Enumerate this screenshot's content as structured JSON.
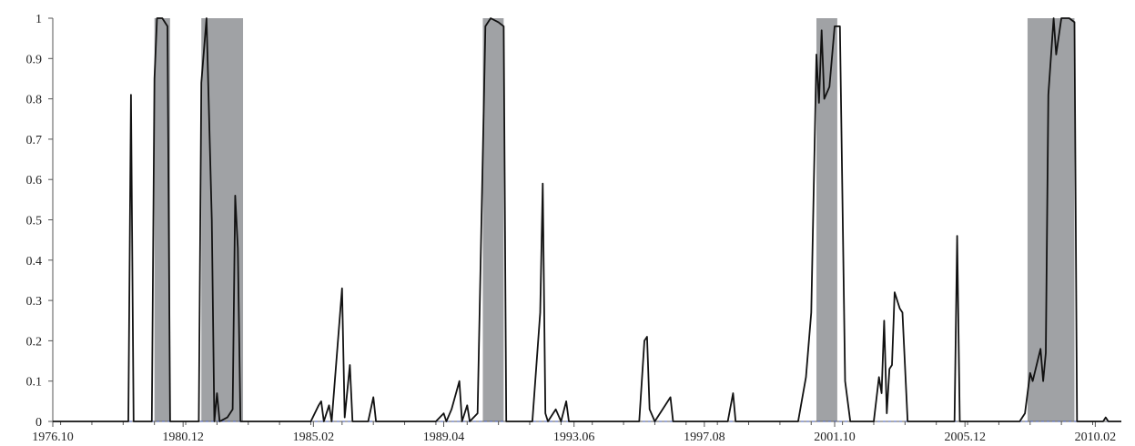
{
  "chart_data": {
    "type": "line",
    "title": "",
    "xlabel": "",
    "ylabel": "",
    "xlim": [
      "1976.10",
      "2010.12"
    ],
    "ylim": [
      0,
      1
    ],
    "yticks": [
      "0",
      "0.1",
      "0.2",
      "0.3",
      "0.4",
      "0.5",
      "0.6",
      "0.7",
      "0.8",
      "0.9",
      "1"
    ],
    "xticks": [
      "1976.10",
      "1980.12",
      "1985.02",
      "1989.04",
      "1993.06",
      "1997.08",
      "2001.10",
      "2005.12",
      "2010.02"
    ],
    "grid": false,
    "shaded_periods": [
      {
        "start": "1980.01",
        "end": "1980.07"
      },
      {
        "start": "1981.07",
        "end": "1982.11"
      },
      {
        "start": "1990.07",
        "end": "1991.03"
      },
      {
        "start": "2001.03",
        "end": "2001.11"
      },
      {
        "start": "2007.12",
        "end": "2009.06"
      }
    ],
    "colors": {
      "line": "#111111",
      "shade": "#a0a2a5",
      "baseline": "#3a4fa8"
    },
    "series": [
      {
        "values": [
          [
            "1976.10",
            0
          ],
          [
            "1979.03",
            0
          ],
          [
            "1979.04",
            0.81
          ],
          [
            "1979.05",
            0
          ],
          [
            "1979.12",
            0
          ],
          [
            "1980.01",
            0.85
          ],
          [
            "1980.02",
            1
          ],
          [
            "1980.04",
            1
          ],
          [
            "1980.06",
            0.98
          ],
          [
            "1980.07",
            0
          ],
          [
            "1981.06",
            0
          ],
          [
            "1981.07",
            0.84
          ],
          [
            "1981.09",
            1
          ],
          [
            "1981.11",
            0.5
          ],
          [
            "1981.12",
            0
          ],
          [
            "1982.01",
            0.07
          ],
          [
            "1982.02",
            0
          ],
          [
            "1982.05",
            0.01
          ],
          [
            "1982.07",
            0.03
          ],
          [
            "1982.08",
            0.56
          ],
          [
            "1982.09",
            0.43
          ],
          [
            "1982.10",
            0
          ],
          [
            "1985.01",
            0
          ],
          [
            "1985.04",
            0.04
          ],
          [
            "1985.05",
            0.05
          ],
          [
            "1985.06",
            0
          ],
          [
            "1985.08",
            0.04
          ],
          [
            "1985.09",
            0
          ],
          [
            "1986.01",
            0.33
          ],
          [
            "1986.02",
            0.01
          ],
          [
            "1986.04",
            0.14
          ],
          [
            "1986.05",
            0
          ],
          [
            "1986.11",
            0
          ],
          [
            "1987.01",
            0.06
          ],
          [
            "1987.02",
            0
          ],
          [
            "1989.01",
            0
          ],
          [
            "1989.04",
            0.02
          ],
          [
            "1989.05",
            0
          ],
          [
            "1989.07",
            0.03
          ],
          [
            "1989.10",
            0.1
          ],
          [
            "1989.11",
            0
          ],
          [
            "1990.01",
            0.04
          ],
          [
            "1990.02",
            0
          ],
          [
            "1990.05",
            0.02
          ],
          [
            "1990.08",
            0.98
          ],
          [
            "1990.10",
            1
          ],
          [
            "1991.01",
            0.99
          ],
          [
            "1991.03",
            0.98
          ],
          [
            "1991.04",
            0
          ],
          [
            "1992.02",
            0
          ],
          [
            "1992.05",
            0.27
          ],
          [
            "1992.06",
            0.59
          ],
          [
            "1992.07",
            0.02
          ],
          [
            "1992.08",
            0
          ],
          [
            "1992.11",
            0.03
          ],
          [
            "1993.01",
            0
          ],
          [
            "1993.03",
            0.05
          ],
          [
            "1993.04",
            0
          ],
          [
            "1995.07",
            0
          ],
          [
            "1995.09",
            0.2
          ],
          [
            "1995.10",
            0.21
          ],
          [
            "1995.11",
            0.03
          ],
          [
            "1996.01",
            0
          ],
          [
            "1996.07",
            0.06
          ],
          [
            "1996.08",
            0
          ],
          [
            "1998.05",
            0
          ],
          [
            "1998.07",
            0.07
          ],
          [
            "1998.08",
            0
          ],
          [
            "2000.08",
            0
          ],
          [
            "2000.11",
            0.11
          ],
          [
            "2001.01",
            0.27
          ],
          [
            "2001.03",
            0.91
          ],
          [
            "2001.04",
            0.79
          ],
          [
            "2001.05",
            0.97
          ],
          [
            "2001.06",
            0.8
          ],
          [
            "2001.08",
            0.83
          ],
          [
            "2001.10",
            0.98
          ],
          [
            "2001.12",
            0.98
          ],
          [
            "2002.02",
            0.1
          ],
          [
            "2002.04",
            0
          ],
          [
            "2003.01",
            0
          ],
          [
            "2003.03",
            0.11
          ],
          [
            "2003.04",
            0.07
          ],
          [
            "2003.05",
            0.25
          ],
          [
            "2003.06",
            0.02
          ],
          [
            "2003.07",
            0.13
          ],
          [
            "2003.08",
            0.14
          ],
          [
            "2003.09",
            0.32
          ],
          [
            "2003.11",
            0.28
          ],
          [
            "2003.12",
            0.27
          ],
          [
            "2004.02",
            0
          ],
          [
            "2005.08",
            0
          ],
          [
            "2005.09",
            0.46
          ],
          [
            "2005.10",
            0
          ],
          [
            "2007.09",
            0
          ],
          [
            "2007.11",
            0.02
          ],
          [
            "2008.01",
            0.12
          ],
          [
            "2008.02",
            0.1
          ],
          [
            "2008.05",
            0.18
          ],
          [
            "2008.06",
            0.1
          ],
          [
            "2008.07",
            0.17
          ],
          [
            "2008.08",
            0.81
          ],
          [
            "2008.10",
            1
          ],
          [
            "2008.11",
            0.91
          ],
          [
            "2009.01",
            1
          ],
          [
            "2009.04",
            1
          ],
          [
            "2009.06",
            0.99
          ],
          [
            "2009.07",
            0
          ],
          [
            "2010.05",
            0
          ],
          [
            "2010.06",
            0.01
          ],
          [
            "2010.07",
            0
          ],
          [
            "2010.12",
            0
          ]
        ]
      }
    ]
  }
}
